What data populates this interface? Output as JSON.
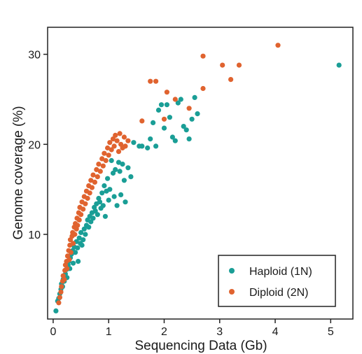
{
  "chart_data": {
    "type": "scatter",
    "title": "",
    "xlabel": "Sequencing Data (Gb)",
    "ylabel": "Genome coverage (%)",
    "xlim": [
      -0.1,
      5.4
    ],
    "ylim": [
      0.6,
      33.0
    ],
    "x_ticks": [
      0,
      1,
      2,
      3,
      4,
      5
    ],
    "y_ticks": [
      10,
      20,
      30
    ],
    "x_tick_labels": [
      "0",
      "1",
      "2",
      "3",
      "4",
      "5"
    ],
    "y_tick_labels": [
      "10",
      "20",
      "30"
    ],
    "grid": false,
    "legend_position": "bottom-right",
    "series": [
      {
        "name": "Haploid (1N)",
        "color": "#1a9e96",
        "points": [
          [
            0.05,
            1.5
          ],
          [
            0.08,
            2.6
          ],
          [
            0.1,
            2.9
          ],
          [
            0.12,
            3.4
          ],
          [
            0.14,
            3.9
          ],
          [
            0.15,
            4.5
          ],
          [
            0.17,
            4.2
          ],
          [
            0.18,
            5.0
          ],
          [
            0.2,
            4.8
          ],
          [
            0.22,
            5.6
          ],
          [
            0.24,
            6.1
          ],
          [
            0.25,
            5.2
          ],
          [
            0.27,
            6.6
          ],
          [
            0.28,
            7.0
          ],
          [
            0.3,
            6.2
          ],
          [
            0.31,
            7.4
          ],
          [
            0.33,
            7.8
          ],
          [
            0.35,
            8.2
          ],
          [
            0.36,
            6.8
          ],
          [
            0.38,
            8.6
          ],
          [
            0.4,
            8.0
          ],
          [
            0.42,
            9.2
          ],
          [
            0.44,
            8.5
          ],
          [
            0.45,
            7.0
          ],
          [
            0.47,
            9.6
          ],
          [
            0.49,
            9.0
          ],
          [
            0.5,
            10.2
          ],
          [
            0.52,
            8.8
          ],
          [
            0.54,
            9.4
          ],
          [
            0.56,
            10.6
          ],
          [
            0.58,
            10.0
          ],
          [
            0.6,
            11.0
          ],
          [
            0.62,
            11.6
          ],
          [
            0.64,
            10.8
          ],
          [
            0.66,
            12.0
          ],
          [
            0.68,
            11.4
          ],
          [
            0.7,
            12.4
          ],
          [
            0.72,
            11.8
          ],
          [
            0.74,
            13.0
          ],
          [
            0.76,
            12.6
          ],
          [
            0.78,
            13.4
          ],
          [
            0.8,
            12.2
          ],
          [
            0.82,
            14.0
          ],
          [
            0.84,
            13.6
          ],
          [
            0.86,
            12.9
          ],
          [
            0.88,
            14.6
          ],
          [
            0.9,
            13.2
          ],
          [
            0.92,
            15.4
          ],
          [
            0.94,
            12.0
          ],
          [
            0.96,
            14.8
          ],
          [
            0.98,
            16.2
          ],
          [
            1.0,
            13.8
          ],
          [
            1.02,
            15.0
          ],
          [
            1.05,
            18.2
          ],
          [
            1.08,
            16.8
          ],
          [
            1.1,
            14.2
          ],
          [
            1.12,
            17.2
          ],
          [
            1.15,
            13.2
          ],
          [
            1.18,
            18.0
          ],
          [
            1.2,
            17.0
          ],
          [
            1.22,
            14.4
          ],
          [
            1.25,
            17.8
          ],
          [
            1.28,
            16.0
          ],
          [
            1.3,
            13.6
          ],
          [
            1.35,
            17.4
          ],
          [
            1.4,
            16.4
          ],
          [
            1.45,
            20.2
          ],
          [
            1.55,
            19.8
          ],
          [
            1.6,
            19.8
          ],
          [
            1.7,
            19.6
          ],
          [
            1.75,
            20.6
          ],
          [
            1.8,
            22.4
          ],
          [
            1.85,
            19.8
          ],
          [
            1.9,
            23.8
          ],
          [
            1.95,
            24.4
          ],
          [
            2.0,
            21.8
          ],
          [
            2.05,
            24.4
          ],
          [
            2.1,
            23.0
          ],
          [
            2.15,
            20.8
          ],
          [
            2.2,
            20.4
          ],
          [
            2.25,
            24.6
          ],
          [
            2.3,
            25.0
          ],
          [
            2.35,
            22.0
          ],
          [
            2.4,
            21.6
          ],
          [
            2.45,
            20.6
          ],
          [
            2.5,
            22.8
          ],
          [
            2.55,
            25.2
          ],
          [
            2.6,
            23.4
          ],
          [
            5.15,
            28.8
          ]
        ]
      },
      {
        "name": "Diploid (2N)",
        "color": "#e0632f",
        "points": [
          [
            0.1,
            2.4
          ],
          [
            0.12,
            3.0
          ],
          [
            0.14,
            3.6
          ],
          [
            0.15,
            4.2
          ],
          [
            0.17,
            4.8
          ],
          [
            0.18,
            5.4
          ],
          [
            0.2,
            5.0
          ],
          [
            0.21,
            6.0
          ],
          [
            0.22,
            6.6
          ],
          [
            0.24,
            7.0
          ],
          [
            0.25,
            6.2
          ],
          [
            0.26,
            7.6
          ],
          [
            0.28,
            8.2
          ],
          [
            0.29,
            7.2
          ],
          [
            0.3,
            8.8
          ],
          [
            0.31,
            9.4
          ],
          [
            0.32,
            8.0
          ],
          [
            0.34,
            9.8
          ],
          [
            0.35,
            10.2
          ],
          [
            0.36,
            9.0
          ],
          [
            0.38,
            10.8
          ],
          [
            0.39,
            10.0
          ],
          [
            0.4,
            11.2
          ],
          [
            0.42,
            10.6
          ],
          [
            0.43,
            11.8
          ],
          [
            0.44,
            11.0
          ],
          [
            0.46,
            12.4
          ],
          [
            0.47,
            11.6
          ],
          [
            0.48,
            13.0
          ],
          [
            0.5,
            12.2
          ],
          [
            0.52,
            13.6
          ],
          [
            0.54,
            12.8
          ],
          [
            0.56,
            14.2
          ],
          [
            0.58,
            13.4
          ],
          [
            0.6,
            14.8
          ],
          [
            0.62,
            14.0
          ],
          [
            0.64,
            15.4
          ],
          [
            0.66,
            14.6
          ],
          [
            0.68,
            16.0
          ],
          [
            0.7,
            15.2
          ],
          [
            0.72,
            16.6
          ],
          [
            0.75,
            15.8
          ],
          [
            0.78,
            17.2
          ],
          [
            0.8,
            16.4
          ],
          [
            0.82,
            17.8
          ],
          [
            0.85,
            17.0
          ],
          [
            0.88,
            18.4
          ],
          [
            0.9,
            17.6
          ],
          [
            0.92,
            19.0
          ],
          [
            0.95,
            18.2
          ],
          [
            0.98,
            19.6
          ],
          [
            1.0,
            18.8
          ],
          [
            1.02,
            20.2
          ],
          [
            1.05,
            19.4
          ],
          [
            1.08,
            20.6
          ],
          [
            1.1,
            19.8
          ],
          [
            1.12,
            21.0
          ],
          [
            1.15,
            20.4
          ],
          [
            1.18,
            19.2
          ],
          [
            1.2,
            21.2
          ],
          [
            1.22,
            20.0
          ],
          [
            1.25,
            19.6
          ],
          [
            1.28,
            20.8
          ],
          [
            1.3,
            19.8
          ],
          [
            1.35,
            20.4
          ],
          [
            1.6,
            22.6
          ],
          [
            1.75,
            27.0
          ],
          [
            1.85,
            27.0
          ],
          [
            2.0,
            22.8
          ],
          [
            2.05,
            25.8
          ],
          [
            2.2,
            25.0
          ],
          [
            2.45,
            24.0
          ],
          [
            2.7,
            26.2
          ],
          [
            2.7,
            29.8
          ],
          [
            3.05,
            28.8
          ],
          [
            3.2,
            27.2
          ],
          [
            3.35,
            28.8
          ],
          [
            4.05,
            31.0
          ]
        ]
      }
    ]
  }
}
